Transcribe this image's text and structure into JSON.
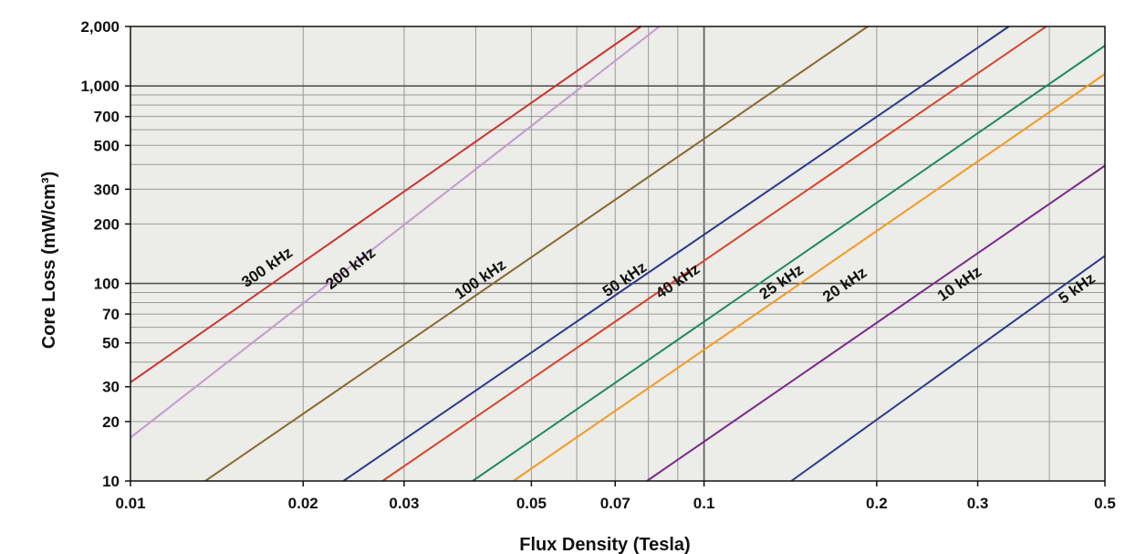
{
  "chart_data": {
    "type": "line",
    "xlabel": "Flux Density (Tesla)",
    "ylabel": "Core Loss (mW/cm³)",
    "x_scale": "log",
    "y_scale": "log",
    "xlim": [
      0.01,
      0.5
    ],
    "ylim": [
      10,
      2000
    ],
    "grid": true,
    "plot_background": "#ecece8",
    "x_ticks": [
      {
        "value": 0.01,
        "label": "0.01"
      },
      {
        "value": 0.02,
        "label": "0.02"
      },
      {
        "value": 0.03,
        "label": "0.03"
      },
      {
        "value": 0.05,
        "label": "0.05"
      },
      {
        "value": 0.07,
        "label": "0.07"
      },
      {
        "value": 0.1,
        "label": "0.1"
      },
      {
        "value": 0.2,
        "label": "0.2"
      },
      {
        "value": 0.3,
        "label": "0.3"
      },
      {
        "value": 0.5,
        "label": "0.5"
      }
    ],
    "y_ticks": [
      {
        "value": 10,
        "label": "10"
      },
      {
        "value": 20,
        "label": "20"
      },
      {
        "value": 30,
        "label": "30"
      },
      {
        "value": 50,
        "label": "50"
      },
      {
        "value": 70,
        "label": "70"
      },
      {
        "value": 100,
        "label": "100"
      },
      {
        "value": 200,
        "label": "200"
      },
      {
        "value": 300,
        "label": "300"
      },
      {
        "value": 500,
        "label": "500"
      },
      {
        "value": 700,
        "label": "700"
      },
      {
        "value": 1000,
        "label": "1,000"
      },
      {
        "value": 2000,
        "label": "2,000"
      }
    ],
    "x_grid": [
      0.01,
      0.02,
      0.03,
      0.04,
      0.05,
      0.06,
      0.07,
      0.08,
      0.09,
      0.1,
      0.2,
      0.3,
      0.4,
      0.5
    ],
    "y_grid": [
      10,
      20,
      30,
      40,
      50,
      60,
      70,
      80,
      90,
      100,
      200,
      300,
      400,
      500,
      600,
      700,
      800,
      900,
      1000,
      2000
    ],
    "series": [
      {
        "name": "300 kHz",
        "color": "#c9362e",
        "x": [
          0.01,
          0.0776
        ],
        "y": [
          31.6,
          2000
        ],
        "label_x": 0.0175,
        "label_y": 115
      },
      {
        "name": "200 kHz",
        "color": "#c39ad0",
        "x": [
          0.01,
          0.0836
        ],
        "y": [
          16.6,
          2000
        ],
        "label_x": 0.0245,
        "label_y": 114
      },
      {
        "name": "100 kHz",
        "color": "#8a6a2e",
        "x": [
          0.0135,
          0.193
        ],
        "y": [
          10,
          2000
        ],
        "label_x": 0.0412,
        "label_y": 100
      },
      {
        "name": "50 kHz",
        "color": "#2b3a8c",
        "x": [
          0.0235,
          0.34
        ],
        "y": [
          10,
          2000
        ],
        "label_x": 0.0735,
        "label_y": 100
      },
      {
        "name": "40 kHz",
        "color": "#d6452c",
        "x": [
          0.0275,
          0.395
        ],
        "y": [
          10,
          2000
        ],
        "label_x": 0.091,
        "label_y": 98
      },
      {
        "name": "25 kHz",
        "color": "#1e8a5e",
        "x": [
          0.0395,
          0.5
        ],
        "y": [
          10,
          1600
        ],
        "label_x": 0.138,
        "label_y": 97
      },
      {
        "name": "20 kHz",
        "color": "#f39a24",
        "x": [
          0.0465,
          0.5
        ],
        "y": [
          10,
          1150
        ],
        "label_x": 0.178,
        "label_y": 94
      },
      {
        "name": "10 kHz",
        "color": "#7a2a8a",
        "x": [
          0.0795,
          0.5
        ],
        "y": [
          10,
          395
        ],
        "label_x": 0.282,
        "label_y": 95
      },
      {
        "name": "5 kHz",
        "color": "#2b3a8c",
        "x": [
          0.142,
          0.5
        ],
        "y": [
          10,
          138
        ],
        "label_x": 0.452,
        "label_y": 90
      }
    ]
  }
}
